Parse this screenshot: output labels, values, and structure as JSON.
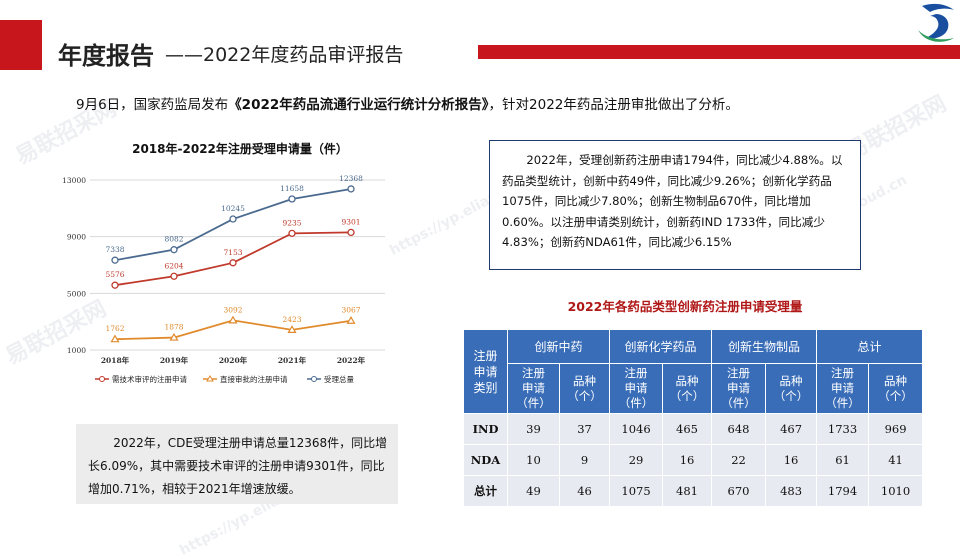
{
  "header": {
    "title_main": "年度报告",
    "title_sub": "——2022年度药品审评报告"
  },
  "intro": {
    "prefix": "9月6日，国家药监局发布",
    "report_name": "《2022年药品流通行业运行统计分析报告》",
    "suffix": "，针对2022年药品注册审批做出了分析。"
  },
  "chart_data": {
    "type": "line",
    "title": "2018年-2022年注册受理申请量（件）",
    "categories": [
      "2018年",
      "2019年",
      "2020年",
      "2021年",
      "2022年"
    ],
    "yticks": [
      "1000",
      "5000",
      "9000",
      "13000"
    ],
    "ylim": [
      1000,
      13000
    ],
    "grid": true,
    "legend_position": "bottom",
    "series": [
      {
        "name": "需技术审评的注册申请",
        "color": "#c0392b",
        "marker": "circle",
        "values": [
          5576,
          6204,
          7153,
          9235,
          9301
        ]
      },
      {
        "name": "直接审批的注册申请",
        "color": "#e08a2c",
        "marker": "triangle",
        "values": [
          1762,
          1878,
          3092,
          2423,
          3067
        ]
      },
      {
        "name": "受理总量",
        "color": "#4a6a8f",
        "marker": "circle",
        "values": [
          7338,
          8082,
          10245,
          11658,
          12368
        ]
      }
    ]
  },
  "summary_box": {
    "text": "2022年，受理创新药注册申请1794件，同比减少4.88%。以药品类型统计，创新中药49件，同比减少9.26%；创新化学药品1075件，同比减少7.80%；创新生物制品670件，同比增加0.60%。以注册申请类别统计，创新药IND 1733件，同比减少4.83%；创新药NDA61件，同比减少6.15%"
  },
  "table": {
    "title": "2022年各药品类型创新药注册申请受理量",
    "corner_label": "注册申请类别",
    "groups": [
      "创新中药",
      "创新化学药品",
      "创新生物制品",
      "总计"
    ],
    "subheaders": [
      "注册申请（件）",
      "品种（个）"
    ],
    "rows": [
      {
        "label": "IND",
        "values": [
          "39",
          "37",
          "1046",
          "465",
          "648",
          "467",
          "1733",
          "969"
        ]
      },
      {
        "label": "NDA",
        "values": [
          "10",
          "9",
          "29",
          "16",
          "22",
          "16",
          "61",
          "41"
        ]
      },
      {
        "label": "总计",
        "values": [
          "49",
          "46",
          "1075",
          "481",
          "670",
          "483",
          "1794",
          "1010"
        ]
      }
    ]
  },
  "cde_box": {
    "text": "2022年，CDE受理注册申请总量12368件，同比增长6.09%，其中需要技术审评的注册申请9301件，同比增加0.71%，相较于2021年增速放缓。"
  },
  "watermark": {
    "brand": "易联招采网",
    "url": "https://yp.eliancloud.cn"
  },
  "colors": {
    "accent_red": "#c8161d",
    "table_header_blue": "#3a6db8",
    "table_row_gray": "#e7eaf0",
    "box_border_navy": "#1f3a6e"
  }
}
